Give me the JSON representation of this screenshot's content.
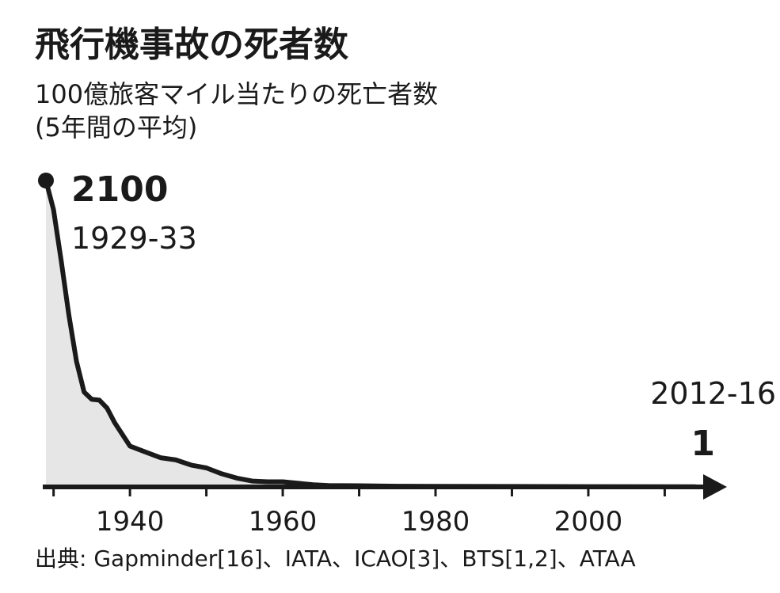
{
  "chart_data": {
    "type": "area",
    "title": "飛行機事故の死者数",
    "subtitle_line1": "100億旅客マイル当たりの死亡者数",
    "subtitle_line2": "(5年間の平均)",
    "x_ticks": [
      1940,
      1960,
      1980,
      2000
    ],
    "xlim": [
      1929,
      2014
    ],
    "ylim": [
      0,
      2100
    ],
    "x": [
      1929,
      1930,
      1931,
      1932,
      1933,
      1934,
      1935,
      1936,
      1937,
      1938,
      1940,
      1942,
      1944,
      1946,
      1948,
      1950,
      1952,
      1954,
      1956,
      1958,
      1960,
      1962,
      1964,
      1966,
      1970,
      1975,
      1980,
      1990,
      2000,
      2014
    ],
    "y": [
      2100,
      1900,
      1550,
      1180,
      860,
      650,
      600,
      595,
      540,
      440,
      280,
      240,
      200,
      185,
      150,
      130,
      90,
      60,
      40,
      35,
      35,
      25,
      15,
      10,
      8,
      5,
      4,
      3,
      2,
      1
    ],
    "annotations": {
      "start": {
        "value": "2100",
        "period": "1929-33"
      },
      "end": {
        "value": "1",
        "period": "2012-16"
      }
    },
    "source": "出典: Gapminder[16]、IATA、ICAO[3]、BTS[1,2]、ATAA",
    "colors": {
      "line": "#1a1a1a",
      "fill": "#e6e6e6"
    }
  }
}
